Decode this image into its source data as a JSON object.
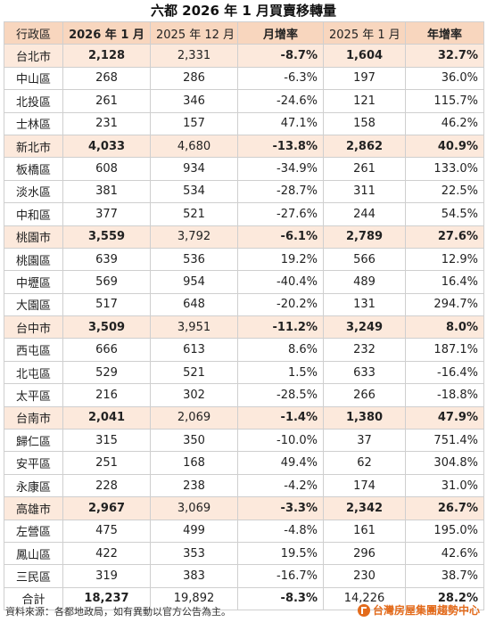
{
  "title": "六都 2026 年 1 月買賣移轉量",
  "headers": [
    "行政區",
    "2026 年 1 月",
    "2025 年 12 月",
    "月增率",
    "2025 年 1 月",
    "年增率"
  ],
  "rows": [
    {
      "type": "city",
      "cells": [
        "台北市",
        "2,128",
        "2,331",
        "-8.7%",
        "1,604",
        "32.7%"
      ]
    },
    {
      "type": "district",
      "cells": [
        "中山區",
        "268",
        "286",
        "-6.3%",
        "197",
        "36.0%"
      ]
    },
    {
      "type": "district",
      "cells": [
        "北投區",
        "261",
        "346",
        "-24.6%",
        "121",
        "115.7%"
      ]
    },
    {
      "type": "district",
      "cells": [
        "士林區",
        "231",
        "157",
        "47.1%",
        "158",
        "46.2%"
      ]
    },
    {
      "type": "city",
      "cells": [
        "新北市",
        "4,033",
        "4,680",
        "-13.8%",
        "2,862",
        "40.9%"
      ]
    },
    {
      "type": "district",
      "cells": [
        "板橋區",
        "608",
        "934",
        "-34.9%",
        "261",
        "133.0%"
      ]
    },
    {
      "type": "district",
      "cells": [
        "淡水區",
        "381",
        "534",
        "-28.7%",
        "311",
        "22.5%"
      ]
    },
    {
      "type": "district",
      "cells": [
        "中和區",
        "377",
        "521",
        "-27.6%",
        "244",
        "54.5%"
      ]
    },
    {
      "type": "city",
      "cells": [
        "桃園市",
        "3,559",
        "3,792",
        "-6.1%",
        "2,789",
        "27.6%"
      ]
    },
    {
      "type": "district",
      "cells": [
        "桃園區",
        "639",
        "536",
        "19.2%",
        "566",
        "12.9%"
      ]
    },
    {
      "type": "district",
      "cells": [
        "中壢區",
        "569",
        "954",
        "-40.4%",
        "489",
        "16.4%"
      ]
    },
    {
      "type": "district",
      "cells": [
        "大園區",
        "517",
        "648",
        "-20.2%",
        "131",
        "294.7%"
      ]
    },
    {
      "type": "city",
      "cells": [
        "台中市",
        "3,509",
        "3,951",
        "-11.2%",
        "3,249",
        "8.0%"
      ]
    },
    {
      "type": "district",
      "cells": [
        "西屯區",
        "666",
        "613",
        "8.6%",
        "232",
        "187.1%"
      ]
    },
    {
      "type": "district",
      "cells": [
        "北屯區",
        "529",
        "521",
        "1.5%",
        "633",
        "-16.4%"
      ]
    },
    {
      "type": "district",
      "cells": [
        "太平區",
        "216",
        "302",
        "-28.5%",
        "266",
        "-18.8%"
      ]
    },
    {
      "type": "city",
      "cells": [
        "台南市",
        "2,041",
        "2,069",
        "-1.4%",
        "1,380",
        "47.9%"
      ]
    },
    {
      "type": "district",
      "cells": [
        "歸仁區",
        "315",
        "350",
        "-10.0%",
        "37",
        "751.4%"
      ]
    },
    {
      "type": "district",
      "cells": [
        "安平區",
        "251",
        "168",
        "49.4%",
        "62",
        "304.8%"
      ]
    },
    {
      "type": "district",
      "cells": [
        "永康區",
        "228",
        "238",
        "-4.2%",
        "174",
        "31.0%"
      ]
    },
    {
      "type": "city",
      "cells": [
        "高雄市",
        "2,967",
        "3,069",
        "-3.3%",
        "2,342",
        "26.7%"
      ]
    },
    {
      "type": "district",
      "cells": [
        "左營區",
        "475",
        "499",
        "-4.8%",
        "161",
        "195.0%"
      ]
    },
    {
      "type": "district",
      "cells": [
        "鳳山區",
        "422",
        "353",
        "19.5%",
        "296",
        "42.6%"
      ]
    },
    {
      "type": "district",
      "cells": [
        "三民區",
        "319",
        "383",
        "-16.7%",
        "230",
        "38.7%"
      ]
    },
    {
      "type": "total",
      "cells": [
        "合計",
        "18,237",
        "19,892",
        "-8.3%",
        "14,226",
        "28.2%"
      ]
    }
  ],
  "footer": {
    "source": "資料來源：各都地政局，如有異動以官方公告為主。",
    "brand": "台灣房屋集團趨勢中心",
    "brand_color": "#e36b1c"
  },
  "colors": {
    "header_bg": "#f8d6be",
    "city_row_bg": "#fce9dc"
  }
}
